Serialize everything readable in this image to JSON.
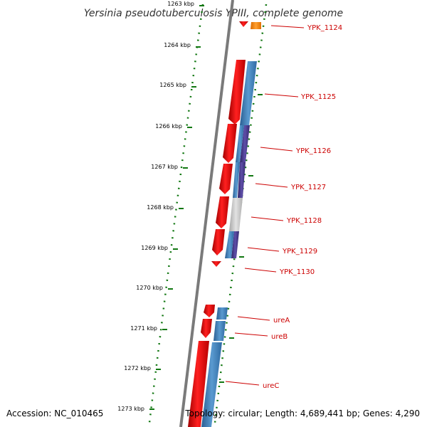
{
  "title": "Yersinia pseudotuberculosis YPIII, complete genome",
  "accession": "Accession: NC_010465",
  "topology": "Topology: circular; Length: 4,689,441 bp; Genes: 4,290",
  "colors": {
    "forward_cds": "#e01010",
    "blue_cds": "#3f7fb8",
    "purple_cds": "#4a3a8c",
    "grey_cds": "#c4c4c4",
    "orange_cds": "#ff8c00",
    "tick": "#117711",
    "backbone": "#808080",
    "label": "#cc0000"
  },
  "scale": {
    "ticks": [
      {
        "label": "1263 kbp"
      },
      {
        "label": "1264 kbp"
      },
      {
        "label": "1265 kbp"
      },
      {
        "label": "1266 kbp"
      },
      {
        "label": "1267 kbp"
      },
      {
        "label": "1268 kbp"
      },
      {
        "label": "1269 kbp"
      },
      {
        "label": "1270 kbp"
      },
      {
        "label": "1271 kbp"
      },
      {
        "label": "1272 kbp"
      },
      {
        "label": "1273 kbp"
      }
    ]
  },
  "genes": [
    {
      "label": "YPK_1124"
    },
    {
      "label": "YPK_1125"
    },
    {
      "label": "YPK_1126"
    },
    {
      "label": "YPK_1127"
    },
    {
      "label": "YPK_1128"
    },
    {
      "label": "YPK_1129"
    },
    {
      "label": "YPK_1130"
    },
    {
      "label": "ureA"
    },
    {
      "label": "ureB"
    },
    {
      "label": "ureC"
    }
  ]
}
